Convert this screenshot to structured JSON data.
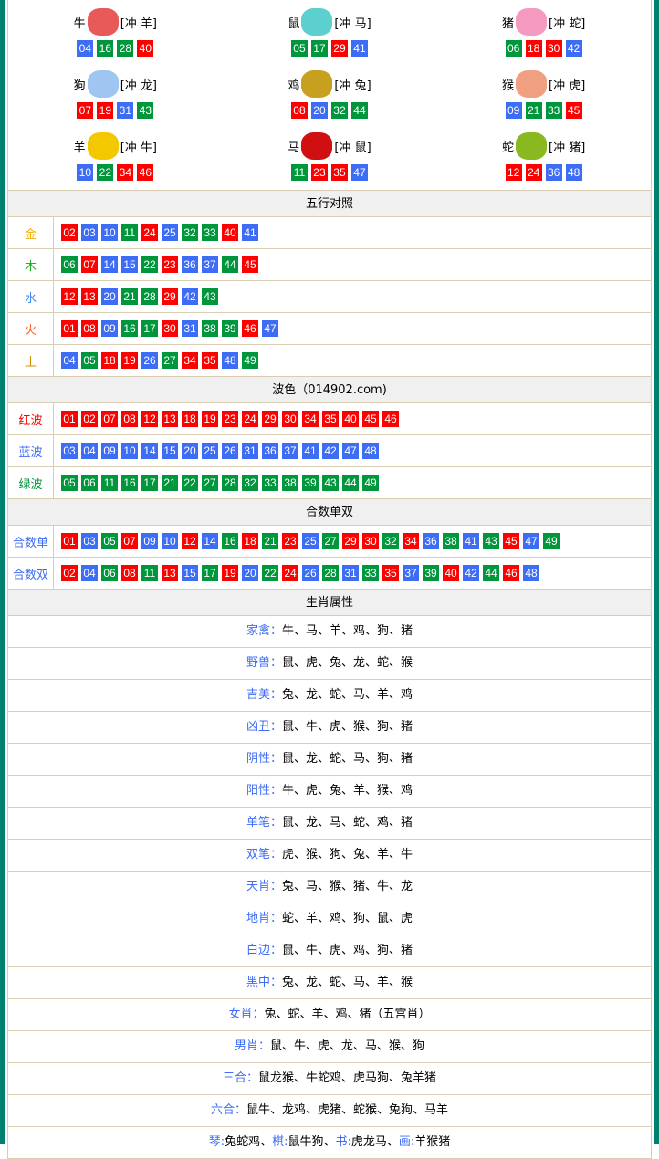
{
  "colors": {
    "red": "#ff0000",
    "blue": "#3d6cf5",
    "green": "#00963c",
    "border": "#00806e"
  },
  "waves": {
    "red": [
      "01",
      "02",
      "07",
      "08",
      "12",
      "13",
      "18",
      "19",
      "23",
      "24",
      "29",
      "30",
      "34",
      "35",
      "40",
      "45",
      "46"
    ],
    "blue": [
      "03",
      "04",
      "09",
      "10",
      "14",
      "15",
      "20",
      "25",
      "26",
      "31",
      "36",
      "37",
      "41",
      "42",
      "47",
      "48"
    ],
    "green": [
      "05",
      "06",
      "11",
      "16",
      "17",
      "21",
      "22",
      "27",
      "28",
      "32",
      "33",
      "38",
      "39",
      "43",
      "44",
      "49"
    ]
  },
  "zodiacs": [
    {
      "name": "牛",
      "clash": "[冲 羊]",
      "color": "#e85a5a",
      "numbers": [
        "04",
        "16",
        "28",
        "40"
      ]
    },
    {
      "name": "鼠",
      "clash": "[冲 马]",
      "color": "#5ccfcf",
      "numbers": [
        "05",
        "17",
        "29",
        "41"
      ]
    },
    {
      "name": "猪",
      "clash": "[冲 蛇]",
      "color": "#f49ac0",
      "numbers": [
        "06",
        "18",
        "30",
        "42"
      ]
    },
    {
      "name": "狗",
      "clash": "[冲 龙]",
      "color": "#9ec6f0",
      "numbers": [
        "07",
        "19",
        "31",
        "43"
      ]
    },
    {
      "name": "鸡",
      "clash": "[冲 兔]",
      "color": "#c8a020",
      "numbers": [
        "08",
        "20",
        "32",
        "44"
      ]
    },
    {
      "name": "猴",
      "clash": "[冲 虎]",
      "color": "#f0a080",
      "numbers": [
        "09",
        "21",
        "33",
        "45"
      ]
    },
    {
      "name": "羊",
      "clash": "[冲 牛]",
      "color": "#f4c800",
      "numbers": [
        "10",
        "22",
        "34",
        "46"
      ]
    },
    {
      "name": "马",
      "clash": "[冲 鼠]",
      "color": "#d01010",
      "numbers": [
        "11",
        "23",
        "35",
        "47"
      ]
    },
    {
      "name": "蛇",
      "clash": "[冲 猪]",
      "color": "#8ab820",
      "numbers": [
        "12",
        "24",
        "36",
        "48"
      ]
    }
  ],
  "wuxing": {
    "title": "五行对照",
    "rows": [
      {
        "label": "金",
        "color": "#f4b000",
        "numbers": [
          "02",
          "03",
          "10",
          "11",
          "24",
          "25",
          "32",
          "33",
          "40",
          "41"
        ]
      },
      {
        "label": "木",
        "color": "#22b022",
        "numbers": [
          "06",
          "07",
          "14",
          "15",
          "22",
          "23",
          "36",
          "37",
          "44",
          "45"
        ]
      },
      {
        "label": "水",
        "color": "#3d8cf5",
        "numbers": [
          "12",
          "13",
          "20",
          "21",
          "28",
          "29",
          "42",
          "43"
        ]
      },
      {
        "label": "火",
        "color": "#ff5a2a",
        "numbers": [
          "01",
          "08",
          "09",
          "16",
          "17",
          "30",
          "31",
          "38",
          "39",
          "46",
          "47"
        ]
      },
      {
        "label": "土",
        "color": "#d09000",
        "numbers": [
          "04",
          "05",
          "18",
          "19",
          "26",
          "27",
          "34",
          "35",
          "48",
          "49"
        ]
      }
    ]
  },
  "bose": {
    "title": "波色（014902.com)",
    "rows": [
      {
        "label": "红波",
        "color": "#ff0000",
        "wave": "red"
      },
      {
        "label": "蓝波",
        "color": "#3d6cf5",
        "wave": "blue"
      },
      {
        "label": "绿波",
        "color": "#00963c",
        "wave": "green"
      }
    ]
  },
  "heshu": {
    "title": "合数单双",
    "rows": [
      {
        "label": "合数单",
        "color": "#3d6cf5",
        "numbers": [
          "01",
          "03",
          "05",
          "07",
          "09",
          "10",
          "12",
          "14",
          "16",
          "18",
          "21",
          "23",
          "25",
          "27",
          "29",
          "30",
          "32",
          "34",
          "36",
          "38",
          "41",
          "43",
          "45",
          "47",
          "49"
        ]
      },
      {
        "label": "合数双",
        "color": "#3d6cf5",
        "numbers": [
          "02",
          "04",
          "06",
          "08",
          "11",
          "13",
          "15",
          "17",
          "19",
          "20",
          "22",
          "24",
          "26",
          "28",
          "31",
          "33",
          "35",
          "37",
          "39",
          "40",
          "42",
          "44",
          "46",
          "48"
        ]
      }
    ]
  },
  "attrs": {
    "title": "生肖属性",
    "rows": [
      {
        "k": "家禽：",
        "v": "牛、马、羊、鸡、狗、猪"
      },
      {
        "k": "野兽：",
        "v": "鼠、虎、兔、龙、蛇、猴"
      },
      {
        "k": "吉美：",
        "v": "兔、龙、蛇、马、羊、鸡"
      },
      {
        "k": "凶丑：",
        "v": "鼠、牛、虎、猴、狗、猪"
      },
      {
        "k": "阴性：",
        "v": "鼠、龙、蛇、马、狗、猪"
      },
      {
        "k": "阳性：",
        "v": "牛、虎、兔、羊、猴、鸡"
      },
      {
        "k": "单笔：",
        "v": "鼠、龙、马、蛇、鸡、猪"
      },
      {
        "k": "双笔：",
        "v": "虎、猴、狗、兔、羊、牛"
      },
      {
        "k": "天肖：",
        "v": "兔、马、猴、猪、牛、龙"
      },
      {
        "k": "地肖：",
        "v": "蛇、羊、鸡、狗、鼠、虎"
      },
      {
        "k": "白边：",
        "v": "鼠、牛、虎、鸡、狗、猪"
      },
      {
        "k": "黑中：",
        "v": "兔、龙、蛇、马、羊、猴"
      },
      {
        "k": "女肖：",
        "v": "兔、蛇、羊、鸡、猪（五宫肖）"
      },
      {
        "k": "男肖：",
        "v": "鼠、牛、虎、龙、马、猴、狗"
      },
      {
        "k": "三合：",
        "v": "鼠龙猴、牛蛇鸡、虎马狗、兔羊猪"
      },
      {
        "k": "六合：",
        "v": "鼠牛、龙鸡、虎猪、蛇猴、兔狗、马羊"
      }
    ]
  },
  "qqsh": [
    {
      "k": "琴:",
      "v": "兔蛇鸡、"
    },
    {
      "k": "棋:",
      "v": "鼠牛狗、"
    },
    {
      "k": "书:",
      "v": "虎龙马、"
    },
    {
      "k": "画:",
      "v": "羊猴猪"
    }
  ]
}
